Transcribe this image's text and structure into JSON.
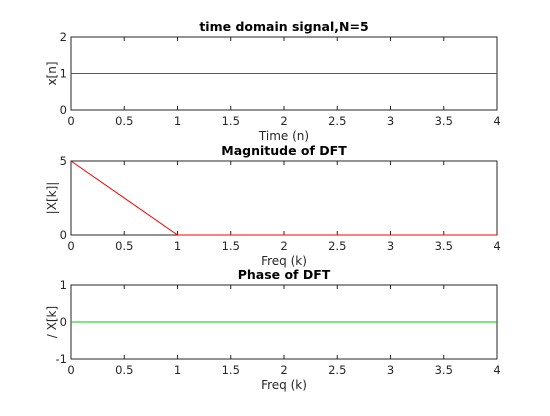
{
  "chart_data": [
    {
      "type": "line",
      "title": "time domain signal,N=5",
      "xlabel": "Time (n)",
      "ylabel": "x[n]",
      "xlim": [
        0,
        4
      ],
      "ylim": [
        0,
        2
      ],
      "xticks": [
        "0",
        "0.5",
        "1",
        "1.5",
        "2",
        "2.5",
        "3",
        "3.5",
        "4"
      ],
      "yticks": [
        "0",
        "1",
        "2"
      ],
      "grid": false,
      "series": [
        {
          "color": "#0072bd",
          "x": [
            0,
            1,
            2,
            3,
            4
          ],
          "y": [
            1,
            1,
            1,
            1,
            1
          ]
        }
      ]
    },
    {
      "type": "line",
      "title": "Magnitude of DFT",
      "xlabel": "Freq (k)",
      "ylabel": "|X[k]|",
      "xlim": [
        0,
        4
      ],
      "ylim": [
        0,
        5
      ],
      "xticks": [
        "0",
        "0.5",
        "1",
        "1.5",
        "2",
        "2.5",
        "3",
        "3.5",
        "4"
      ],
      "yticks": [
        "0",
        "5"
      ],
      "grid": false,
      "series": [
        {
          "color": "#ff0000",
          "x": [
            0,
            1,
            2,
            3,
            4
          ],
          "y": [
            5,
            0,
            0,
            0,
            0
          ]
        }
      ]
    },
    {
      "type": "line",
      "title": "Phase of DFT",
      "xlabel": "Freq (k)",
      "ylabel": "/ X[k]",
      "xlim": [
        0,
        4
      ],
      "ylim": [
        -1,
        1
      ],
      "xticks": [
        "0",
        "0.5",
        "1",
        "1.5",
        "2",
        "2.5",
        "3",
        "3.5",
        "4"
      ],
      "yticks": [
        "-1",
        "0",
        "1"
      ],
      "grid": false,
      "series": [
        {
          "color": "#00cc00",
          "x": [
            0,
            1,
            2,
            3,
            4
          ],
          "y": [
            0,
            0,
            0,
            0,
            0
          ]
        }
      ]
    }
  ]
}
